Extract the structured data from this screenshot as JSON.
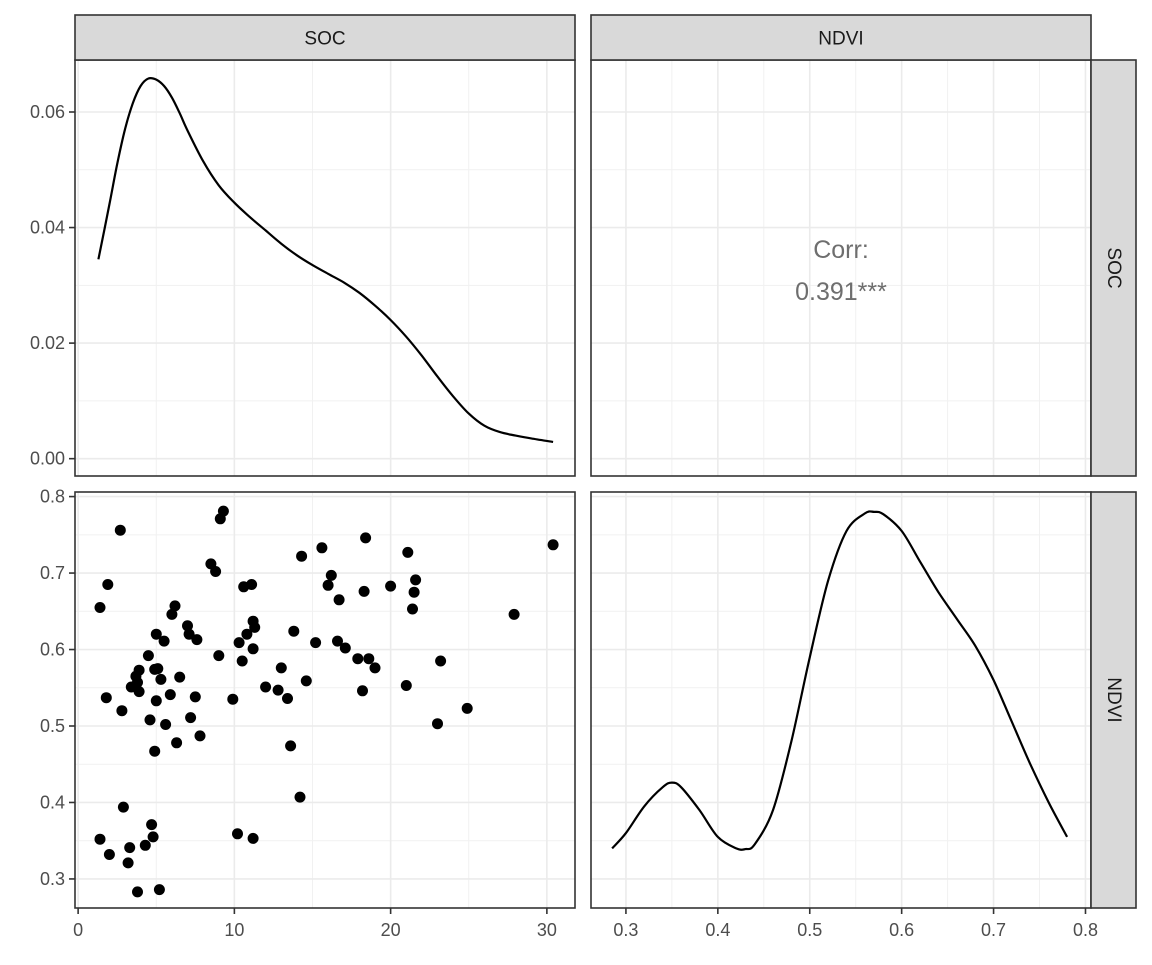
{
  "chart_data": {
    "type": "scatter",
    "layout": "pairs-matrix",
    "variables": [
      "SOC",
      "NDVI"
    ],
    "x_axes": {
      "SOC": {
        "ticks": [
          0,
          10,
          20,
          30
        ],
        "range": [
          -0.2,
          31.8
        ]
      },
      "NDVI": {
        "ticks": [
          0.3,
          0.4,
          0.5,
          0.6,
          0.7,
          0.8
        ],
        "tick_labels": [
          "0.3",
          "0.4",
          "0.5",
          "0.6",
          "0.7",
          "0.8"
        ],
        "range": [
          0.262,
          0.806
        ]
      }
    },
    "y_axes": {
      "SOC": {
        "ticks": [
          0,
          0.02,
          0.04,
          0.06
        ],
        "tick_labels": [
          "0.00",
          "0.02",
          "0.04",
          "0.06"
        ],
        "range": [
          -0.003,
          0.069
        ]
      },
      "NDVI": {
        "ticks": [
          0.3,
          0.4,
          0.5,
          0.6,
          0.7,
          0.8
        ],
        "tick_labels": [
          "0.3",
          "0.4",
          "0.5",
          "0.6",
          "0.7",
          "0.8"
        ],
        "range": [
          0.262,
          0.806
        ]
      }
    },
    "panels": {
      "soc_density": {
        "type": "line",
        "x": [
          1.3,
          2.0,
          2.5,
          3.0,
          3.5,
          4.0,
          4.5,
          5.0,
          5.5,
          6.0,
          6.5,
          7.0,
          8.0,
          9.0,
          10.0,
          11.0,
          12.0,
          13.0,
          14.0,
          15.0,
          16.0,
          17.0,
          18.0,
          19.0,
          20.0,
          21.0,
          22.0,
          23.0,
          24.0,
          25.0,
          26.0,
          27.0,
          28.0,
          29.0,
          30.4
        ],
        "y": [
          0.0345,
          0.044,
          0.051,
          0.057,
          0.0615,
          0.0645,
          0.0658,
          0.0656,
          0.0645,
          0.0625,
          0.0598,
          0.0568,
          0.0515,
          0.0473,
          0.0443,
          0.0418,
          0.0395,
          0.0372,
          0.0352,
          0.0335,
          0.032,
          0.0305,
          0.0287,
          0.0265,
          0.024,
          0.0211,
          0.0178,
          0.0142,
          0.0108,
          0.0078,
          0.0057,
          0.0046,
          0.004,
          0.0035,
          0.0029
        ]
      },
      "corr": {
        "label": "Corr:",
        "value": "0.391***"
      },
      "scatter": {
        "points": [
          [
            1.4,
            0.655
          ],
          [
            1.9,
            0.685
          ],
          [
            1.8,
            0.537
          ],
          [
            2.7,
            0.756
          ],
          [
            2.8,
            0.52
          ],
          [
            2.9,
            0.394
          ],
          [
            1.4,
            0.352
          ],
          [
            2.0,
            0.332
          ],
          [
            3.2,
            0.321
          ],
          [
            3.3,
            0.341
          ],
          [
            3.4,
            0.551
          ],
          [
            3.7,
            0.565
          ],
          [
            3.8,
            0.557
          ],
          [
            3.9,
            0.573
          ],
          [
            3.9,
            0.545
          ],
          [
            3.8,
            0.283
          ],
          [
            4.3,
            0.344
          ],
          [
            4.5,
            0.592
          ],
          [
            4.6,
            0.508
          ],
          [
            4.7,
            0.371
          ],
          [
            4.8,
            0.355
          ],
          [
            4.9,
            0.467
          ],
          [
            5.0,
            0.533
          ],
          [
            5.0,
            0.62
          ],
          [
            4.9,
            0.574
          ],
          [
            5.1,
            0.575
          ],
          [
            5.2,
            0.286
          ],
          [
            5.3,
            0.561
          ],
          [
            5.5,
            0.611
          ],
          [
            5.6,
            0.502
          ],
          [
            5.9,
            0.541
          ],
          [
            6.0,
            0.646
          ],
          [
            6.2,
            0.657
          ],
          [
            6.3,
            0.478
          ],
          [
            6.5,
            0.564
          ],
          [
            7.0,
            0.631
          ],
          [
            7.1,
            0.62
          ],
          [
            7.2,
            0.511
          ],
          [
            7.5,
            0.538
          ],
          [
            7.6,
            0.613
          ],
          [
            7.8,
            0.487
          ],
          [
            8.5,
            0.712
          ],
          [
            8.8,
            0.702
          ],
          [
            9.0,
            0.592
          ],
          [
            9.1,
            0.771
          ],
          [
            9.3,
            0.781
          ],
          [
            9.9,
            0.535
          ],
          [
            10.2,
            0.359
          ],
          [
            10.3,
            0.609
          ],
          [
            10.5,
            0.585
          ],
          [
            10.6,
            0.682
          ],
          [
            10.8,
            0.62
          ],
          [
            11.1,
            0.685
          ],
          [
            11.2,
            0.601
          ],
          [
            11.2,
            0.637
          ],
          [
            11.3,
            0.629
          ],
          [
            11.2,
            0.353
          ],
          [
            12.0,
            0.551
          ],
          [
            12.8,
            0.547
          ],
          [
            13.0,
            0.576
          ],
          [
            13.4,
            0.536
          ],
          [
            13.6,
            0.474
          ],
          [
            13.8,
            0.624
          ],
          [
            14.2,
            0.407
          ],
          [
            14.3,
            0.722
          ],
          [
            14.6,
            0.559
          ],
          [
            15.2,
            0.609
          ],
          [
            15.6,
            0.733
          ],
          [
            16.0,
            0.684
          ],
          [
            16.2,
            0.697
          ],
          [
            16.6,
            0.611
          ],
          [
            16.7,
            0.665
          ],
          [
            17.1,
            0.602
          ],
          [
            17.9,
            0.588
          ],
          [
            18.2,
            0.546
          ],
          [
            18.3,
            0.676
          ],
          [
            18.4,
            0.746
          ],
          [
            18.6,
            0.588
          ],
          [
            19.0,
            0.576
          ],
          [
            20.0,
            0.683
          ],
          [
            21.0,
            0.553
          ],
          [
            21.1,
            0.727
          ],
          [
            21.4,
            0.653
          ],
          [
            21.5,
            0.675
          ],
          [
            21.6,
            0.691
          ],
          [
            23.0,
            0.503
          ],
          [
            23.2,
            0.585
          ],
          [
            24.9,
            0.523
          ],
          [
            27.9,
            0.646
          ],
          [
            30.4,
            0.737
          ]
        ]
      },
      "ndvi_density": {
        "type": "line",
        "x": [
          0.285,
          0.3,
          0.32,
          0.34,
          0.35,
          0.36,
          0.38,
          0.4,
          0.42,
          0.43,
          0.44,
          0.46,
          0.48,
          0.5,
          0.52,
          0.54,
          0.56,
          0.57,
          0.58,
          0.6,
          0.62,
          0.64,
          0.66,
          0.68,
          0.7,
          0.72,
          0.74,
          0.76,
          0.78
        ],
        "y": [
          0.34,
          0.36,
          0.395,
          0.42,
          0.426,
          0.42,
          0.39,
          0.355,
          0.34,
          0.339,
          0.345,
          0.39,
          0.48,
          0.59,
          0.69,
          0.755,
          0.778,
          0.78,
          0.777,
          0.755,
          0.715,
          0.675,
          0.64,
          0.605,
          0.56,
          0.505,
          0.45,
          0.4,
          0.355
        ]
      }
    }
  }
}
